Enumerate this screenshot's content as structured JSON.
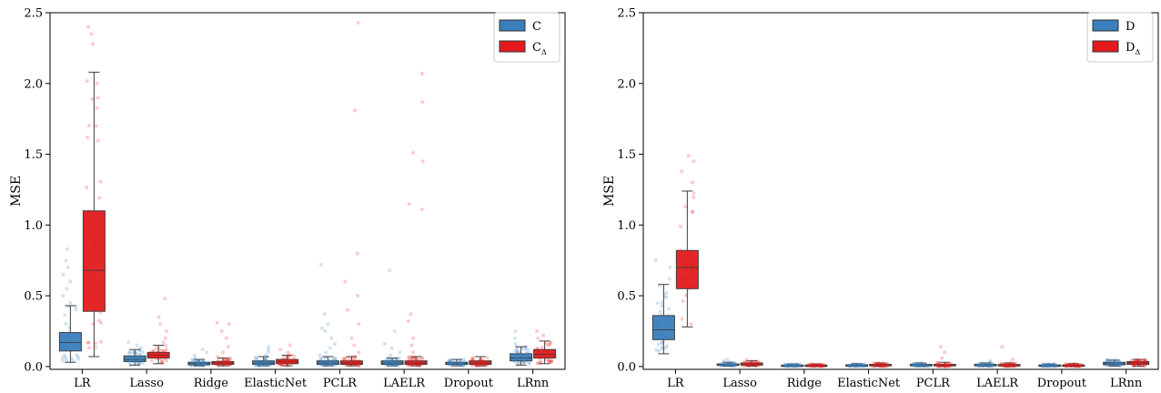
{
  "chart_data": [
    {
      "type": "box",
      "ylabel": "MSE",
      "xlabel": "",
      "ylim": [
        -0.02,
        2.5
      ],
      "yticks": [
        0.0,
        0.5,
        1.0,
        1.5,
        2.0,
        2.5
      ],
      "ytick_labels": [
        "0.0",
        "0.5",
        "1.0",
        "1.5",
        "2.0",
        "2.5"
      ],
      "categories": [
        "LR",
        "Lasso",
        "Ridge",
        "ElasticNet",
        "PCLR",
        "LAELR",
        "Dropout",
        "LRnn"
      ],
      "legend": {
        "position": "top-right",
        "entries": [
          {
            "name": "C",
            "sub": ""
          },
          {
            "name": "C",
            "sub": "Δ"
          }
        ]
      },
      "series": [
        {
          "name": "C",
          "color": "#3a7ebb",
          "boxes": [
            {
              "q1": 0.11,
              "median": 0.17,
              "q3": 0.24,
              "whislo": 0.03,
              "whishi": 0.43,
              "outliers": [
                0.45,
                0.5,
                0.55,
                0.6,
                0.65,
                0.7,
                0.75,
                0.83
              ]
            },
            {
              "q1": 0.035,
              "median": 0.05,
              "q3": 0.075,
              "whislo": 0.01,
              "whishi": 0.12,
              "outliers": [
                0.13,
                0.15,
                0.17
              ]
            },
            {
              "q1": 0.012,
              "median": 0.02,
              "q3": 0.03,
              "whislo": 0.005,
              "whishi": 0.05,
              "outliers": [
                0.06,
                0.08,
                0.1,
                0.12
              ]
            },
            {
              "q1": 0.015,
              "median": 0.025,
              "q3": 0.04,
              "whislo": 0.005,
              "whishi": 0.07,
              "outliers": [
                0.08,
                0.1,
                0.12,
                0.14
              ]
            },
            {
              "q1": 0.015,
              "median": 0.025,
              "q3": 0.04,
              "whislo": 0.005,
              "whishi": 0.07,
              "outliers": [
                0.08,
                0.1,
                0.13,
                0.16,
                0.2,
                0.25,
                0.27,
                0.3,
                0.37,
                0.72
              ]
            },
            {
              "q1": 0.015,
              "median": 0.025,
              "q3": 0.04,
              "whislo": 0.005,
              "whishi": 0.06,
              "outliers": [
                0.08,
                0.1,
                0.13,
                0.16,
                0.25,
                0.68
              ]
            },
            {
              "q1": 0.015,
              "median": 0.02,
              "q3": 0.03,
              "whislo": 0.005,
              "whishi": 0.05,
              "outliers": []
            },
            {
              "q1": 0.04,
              "median": 0.06,
              "q3": 0.09,
              "whislo": 0.01,
              "whishi": 0.14,
              "outliers": [
                0.16,
                0.2,
                0.25
              ]
            }
          ]
        },
        {
          "name": "CΔ",
          "color": "#e41a1c",
          "boxes": [
            {
              "q1": 0.39,
              "median": 0.68,
              "q3": 1.1,
              "whislo": 0.07,
              "whishi": 2.08,
              "outliers": [
                2.28,
                2.35,
                2.4
              ]
            },
            {
              "q1": 0.06,
              "median": 0.08,
              "q3": 0.1,
              "whislo": 0.02,
              "whishi": 0.15,
              "outliers": [
                0.17,
                0.2,
                0.25,
                0.3,
                0.35,
                0.48
              ]
            },
            {
              "q1": 0.015,
              "median": 0.025,
              "q3": 0.035,
              "whislo": 0.005,
              "whishi": 0.06,
              "outliers": [
                0.07,
                0.1,
                0.14,
                0.2,
                0.25,
                0.3,
                0.31
              ]
            },
            {
              "q1": 0.02,
              "median": 0.035,
              "q3": 0.05,
              "whislo": 0.005,
              "whishi": 0.08,
              "outliers": [
                0.1,
                0.12,
                0.15
              ]
            },
            {
              "q1": 0.015,
              "median": 0.025,
              "q3": 0.04,
              "whislo": 0.005,
              "whishi": 0.07,
              "outliers": [
                0.1,
                0.15,
                0.2,
                0.3,
                0.4,
                0.5,
                0.6,
                0.8,
                1.81,
                2.43
              ]
            },
            {
              "q1": 0.015,
              "median": 0.025,
              "q3": 0.04,
              "whislo": 0.005,
              "whishi": 0.07,
              "outliers": [
                0.1,
                0.15,
                0.2,
                0.32,
                0.37,
                1.11,
                1.15,
                1.45,
                1.51,
                1.87,
                2.07
              ]
            },
            {
              "q1": 0.015,
              "median": 0.025,
              "q3": 0.04,
              "whislo": 0.005,
              "whishi": 0.07,
              "outliers": []
            },
            {
              "q1": 0.06,
              "median": 0.085,
              "q3": 0.12,
              "whislo": 0.02,
              "whishi": 0.18,
              "outliers": [
                0.2,
                0.22,
                0.25
              ]
            }
          ]
        }
      ]
    },
    {
      "type": "box",
      "ylabel": "MSE",
      "xlabel": "",
      "ylim": [
        -0.02,
        2.5
      ],
      "yticks": [
        0.0,
        0.5,
        1.0,
        1.5,
        2.0,
        2.5
      ],
      "ytick_labels": [
        "0.0",
        "0.5",
        "1.0",
        "1.5",
        "2.0",
        "2.5"
      ],
      "categories": [
        "LR",
        "Lasso",
        "Ridge",
        "ElasticNet",
        "PCLR",
        "LAELR",
        "Dropout",
        "LRnn"
      ],
      "legend": {
        "position": "top-right",
        "entries": [
          {
            "name": "D",
            "sub": ""
          },
          {
            "name": "D",
            "sub": "Δ"
          }
        ]
      },
      "series": [
        {
          "name": "D",
          "color": "#3a7ebb",
          "boxes": [
            {
              "q1": 0.19,
              "median": 0.26,
              "q3": 0.36,
              "whislo": 0.09,
              "whishi": 0.58,
              "outliers": [
                0.62,
                0.7,
                0.75
              ]
            },
            {
              "q1": 0.008,
              "median": 0.012,
              "q3": 0.018,
              "whislo": 0.002,
              "whishi": 0.03,
              "outliers": [
                0.04,
                0.05
              ]
            },
            {
              "q1": 0.003,
              "median": 0.006,
              "q3": 0.01,
              "whislo": 0.001,
              "whishi": 0.018,
              "outliers": []
            },
            {
              "q1": 0.004,
              "median": 0.007,
              "q3": 0.012,
              "whislo": 0.001,
              "whishi": 0.02,
              "outliers": []
            },
            {
              "q1": 0.005,
              "median": 0.009,
              "q3": 0.015,
              "whislo": 0.001,
              "whishi": 0.025,
              "outliers": []
            },
            {
              "q1": 0.005,
              "median": 0.009,
              "q3": 0.015,
              "whislo": 0.001,
              "whishi": 0.025,
              "outliers": [
                0.03,
                0.04
              ]
            },
            {
              "q1": 0.004,
              "median": 0.007,
              "q3": 0.011,
              "whislo": 0.001,
              "whishi": 0.018,
              "outliers": []
            },
            {
              "q1": 0.012,
              "median": 0.02,
              "q3": 0.03,
              "whislo": 0.003,
              "whishi": 0.045,
              "outliers": [
                0.05
              ]
            }
          ]
        },
        {
          "name": "DΔ",
          "color": "#e41a1c",
          "boxes": [
            {
              "q1": 0.55,
              "median": 0.7,
              "q3": 0.82,
              "whislo": 0.28,
              "whishi": 1.24,
              "outliers": [
                1.3,
                1.38,
                1.45,
                1.49
              ]
            },
            {
              "q1": 0.01,
              "median": 0.015,
              "q3": 0.025,
              "whislo": 0.003,
              "whishi": 0.04,
              "outliers": [
                0.05
              ]
            },
            {
              "q1": 0.003,
              "median": 0.006,
              "q3": 0.01,
              "whislo": 0.001,
              "whishi": 0.018,
              "outliers": []
            },
            {
              "q1": 0.005,
              "median": 0.009,
              "q3": 0.015,
              "whislo": 0.001,
              "whishi": 0.025,
              "outliers": []
            },
            {
              "q1": 0.005,
              "median": 0.009,
              "q3": 0.015,
              "whislo": 0.001,
              "whishi": 0.03,
              "outliers": [
                0.06,
                0.1,
                0.14
              ]
            },
            {
              "q1": 0.004,
              "median": 0.008,
              "q3": 0.014,
              "whislo": 0.001,
              "whishi": 0.025,
              "outliers": [
                0.05,
                0.14
              ]
            },
            {
              "q1": 0.004,
              "median": 0.007,
              "q3": 0.011,
              "whislo": 0.001,
              "whishi": 0.02,
              "outliers": []
            },
            {
              "q1": 0.015,
              "median": 0.025,
              "q3": 0.035,
              "whislo": 0.003,
              "whishi": 0.05,
              "outliers": []
            }
          ]
        }
      ]
    }
  ]
}
